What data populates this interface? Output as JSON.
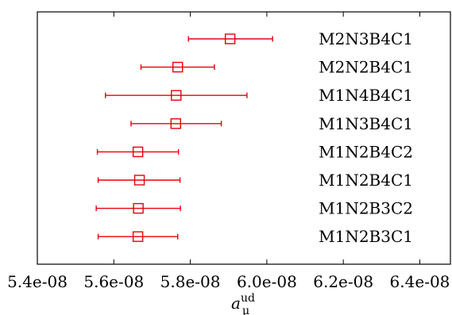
{
  "chart_data": {
    "type": "scatter",
    "title": "",
    "xlabel": "a",
    "xlabel_sub": "μ",
    "xlabel_sup": "ud",
    "ylabel": "",
    "xlim": [
      5.4e-08,
      6.48e-08
    ],
    "xticks": [
      5.4e-08,
      5.6e-08,
      5.8e-08,
      6e-08,
      6.2e-08,
      6.4e-08
    ],
    "xtick_labels": [
      "5.4e-08",
      "5.6e-08",
      "5.8e-08",
      "6.0e-08",
      "6.2e-08",
      "6.4e-08"
    ],
    "grid": false,
    "legend": "none",
    "marker": "open-square",
    "color": "#e8000b",
    "points": [
      {
        "label": "M2N3B4C1",
        "value": 5.904e-08,
        "err_low": 5.795e-08,
        "err_high": 6.015e-08
      },
      {
        "label": "M2N2B4C1",
        "value": 5.767e-08,
        "err_low": 5.671e-08,
        "err_high": 5.863e-08
      },
      {
        "label": "M1N4B4C1",
        "value": 5.763e-08,
        "err_low": 5.578e-08,
        "err_high": 5.948e-08
      },
      {
        "label": "M1N3B4C1",
        "value": 5.762e-08,
        "err_low": 5.645e-08,
        "err_high": 5.881e-08
      },
      {
        "label": "M1N2B4C2",
        "value": 5.663e-08,
        "err_low": 5.557e-08,
        "err_high": 5.769e-08
      },
      {
        "label": "M1N2B4C1",
        "value": 5.667e-08,
        "err_low": 5.559e-08,
        "err_high": 5.773e-08
      },
      {
        "label": "M1N2B3C2",
        "value": 5.664e-08,
        "err_low": 5.554e-08,
        "err_high": 5.774e-08
      },
      {
        "label": "M1N2B3C1",
        "value": 5.663e-08,
        "err_low": 5.559e-08,
        "err_high": 5.767e-08
      }
    ]
  }
}
